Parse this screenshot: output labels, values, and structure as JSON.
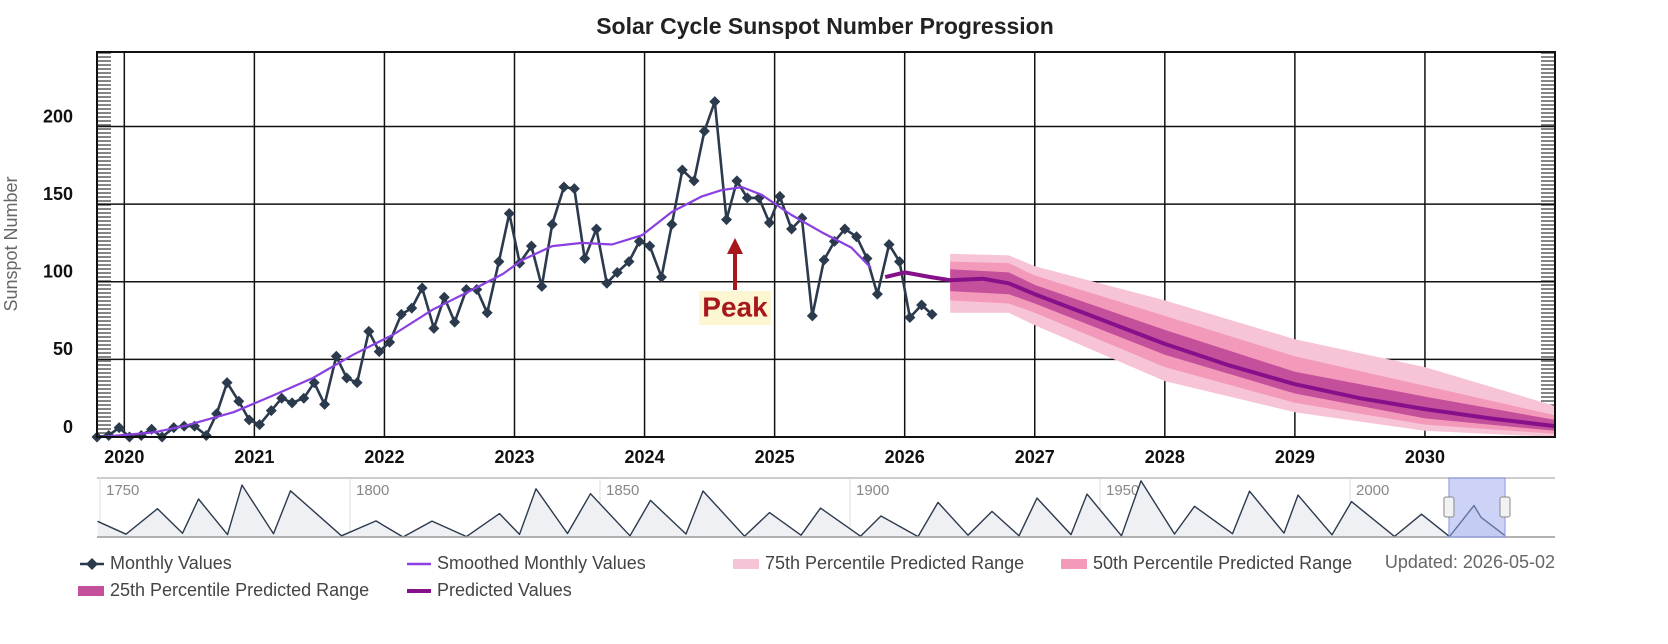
{
  "chart_data": [
    {
      "type": "line",
      "title": "Solar Cycle Sunspot Number Progression",
      "y_label": "Sunspot Number",
      "note": "Updated: 2026-05-02",
      "annotation": {
        "text": "Peak"
      },
      "xlim": [
        2019.79,
        2031.0
      ],
      "xticks": [
        2020,
        2021,
        2022,
        2023,
        2024,
        2025,
        2026,
        2027,
        2028,
        2029,
        2030
      ],
      "ylim": [
        0,
        248
      ],
      "yticks": [
        0,
        50,
        100,
        150,
        200
      ],
      "grid": true,
      "series": [
        {
          "name": "Monthly Values",
          "color": "#2b3a4d",
          "marker": "diamond",
          "x": [
            2019.79,
            2019.88,
            2019.96,
            2020.04,
            2020.13,
            2020.21,
            2020.29,
            2020.38,
            2020.46,
            2020.54,
            2020.63,
            2020.71,
            2020.79,
            2020.88,
            2020.96,
            2021.04,
            2021.13,
            2021.21,
            2021.29,
            2021.38,
            2021.46,
            2021.54,
            2021.63,
            2021.71,
            2021.79,
            2021.88,
            2021.96,
            2022.04,
            2022.13,
            2022.21,
            2022.29,
            2022.38,
            2022.46,
            2022.54,
            2022.63,
            2022.71,
            2022.79,
            2022.88,
            2022.96,
            2023.04,
            2023.13,
            2023.21,
            2023.29,
            2023.38,
            2023.46,
            2023.54,
            2023.63,
            2023.71,
            2023.79,
            2023.88,
            2023.96,
            2024.04,
            2024.13,
            2024.21,
            2024.29,
            2024.38,
            2024.46,
            2024.54,
            2024.63,
            2024.71,
            2024.79,
            2024.88,
            2024.96,
            2025.04,
            2025.13,
            2025.21,
            2025.29,
            2025.38,
            2025.46,
            2025.54,
            2025.63,
            2025.71,
            2025.79,
            2025.88,
            2025.96,
            2026.04,
            2026.13,
            2026.21
          ],
          "values": [
            0,
            1,
            6,
            0,
            1,
            5,
            0,
            6,
            7,
            7,
            1,
            15,
            35,
            23,
            11,
            8,
            17,
            25,
            22,
            25,
            35,
            21,
            52,
            38,
            35,
            68,
            55,
            61,
            79,
            83,
            96,
            70,
            90,
            74,
            95,
            95,
            80,
            113,
            144,
            112,
            123,
            97,
            137,
            161,
            160,
            115,
            134,
            99,
            106,
            113,
            126,
            123,
            103,
            137,
            172,
            165,
            197,
            216,
            140,
            165,
            154,
            154,
            138,
            155,
            134,
            141,
            78,
            114,
            126,
            134,
            129,
            115,
            92,
            124,
            113,
            77,
            85,
            79
          ]
        },
        {
          "name": "Smoothed Monthly Values",
          "color": "#8a3fe0",
          "x": [
            2019.82,
            2020.23,
            2020.46,
            2020.84,
            2021.15,
            2021.45,
            2021.76,
            2022.07,
            2022.37,
            2022.68,
            2022.91,
            2023.06,
            2023.29,
            2023.52,
            2023.75,
            2023.98,
            2024.21,
            2024.44,
            2024.59,
            2024.75,
            2024.9,
            2025.13,
            2025.36,
            2025.59,
            2025.74
          ],
          "values": [
            0,
            3,
            7,
            16,
            27,
            38,
            53,
            66,
            82,
            95,
            105,
            114,
            123,
            125,
            124,
            130,
            145,
            155,
            159,
            161,
            156,
            143,
            132,
            122,
            109
          ]
        },
        {
          "name": "75th Percentile Predicted Range",
          "color": "#f7c3d7",
          "x": [
            2026.35,
            2026.8,
            2027.0,
            2028.0,
            2029.0,
            2030.0,
            2031.0
          ],
          "low": [
            80,
            80,
            72,
            36,
            16,
            4,
            0
          ],
          "high": [
            118,
            117,
            110,
            88,
            63,
            45,
            20
          ]
        },
        {
          "name": "50th Percentile Predicted Range",
          "color": "#f39abb",
          "x": [
            2026.35,
            2026.8,
            2027.0,
            2028.0,
            2029.0,
            2030.0,
            2031.0
          ],
          "low": [
            88,
            86,
            80,
            45,
            22,
            8,
            2
          ],
          "high": [
            113,
            112,
            104,
            78,
            52,
            33,
            14
          ]
        },
        {
          "name": "25th Percentile Predicted Range",
          "color": "#c44f9b",
          "x": [
            2026.35,
            2026.8,
            2027.0,
            2028.0,
            2029.0,
            2030.0,
            2031.0
          ],
          "low": [
            94,
            92,
            86,
            53,
            28,
            12,
            4
          ],
          "high": [
            108,
            106,
            98,
            69,
            42,
            26,
            11
          ]
        },
        {
          "name": "Predicted Values",
          "color": "#86108a",
          "line": "thick",
          "x": [
            2025.85,
            2026.0,
            2026.2,
            2026.35,
            2026.6,
            2026.8,
            2027.0,
            2027.5,
            2028.0,
            2028.5,
            2029.0,
            2029.5,
            2030.0,
            2030.5,
            2031.0
          ],
          "values": [
            103,
            106,
            103,
            101,
            102,
            99,
            92,
            76,
            60,
            46,
            34,
            25,
            18,
            12,
            7
          ]
        }
      ]
    },
    {
      "type": "area",
      "color": "#2b3a4d",
      "xlim": [
        1749.4,
        2041
      ],
      "ylim": [
        0,
        300
      ],
      "xticks": [
        1750,
        1800,
        1850,
        1900,
        1950,
        2000
      ],
      "x": [
        1749.5,
        1755.2,
        1761.5,
        1766.5,
        1769.7,
        1775.5,
        1778.4,
        1784.7,
        1788.1,
        1798.3,
        1805.2,
        1810.6,
        1816.4,
        1823.3,
        1829.9,
        1833.9,
        1837.2,
        1843.5,
        1848.1,
        1856.0,
        1860.1,
        1867.2,
        1870.6,
        1878.9,
        1883.9,
        1890.2,
        1894.1,
        1902.1,
        1906.2,
        1913.6,
        1917.6,
        1923.6,
        1928.4,
        1933.8,
        1937.4,
        1944.2,
        1947.4,
        1954.3,
        1958.2,
        1964.9,
        1968.9,
        1976.5,
        1979.9,
        1986.8,
        1989.6,
        1996.4,
        2000.3,
        2008.9,
        2014.3,
        2019.9,
        2024.8,
        2026.2,
        2031.0
      ],
      "values": [
        80,
        14,
        144,
        19,
        193,
        12,
        264,
        17,
        235,
        6,
        82,
        0,
        81,
        2,
        119,
        13,
        245,
        18,
        220,
        6,
        186,
        15,
        234,
        4,
        124,
        9,
        147,
        4,
        107,
        2,
        176,
        9,
        130,
        6,
        198,
        12,
        218,
        6,
        285,
        15,
        156,
        17,
        233,
        20,
        213,
        11,
        180,
        3,
        116,
        2,
        160,
        100,
        7
      ]
    }
  ]
}
